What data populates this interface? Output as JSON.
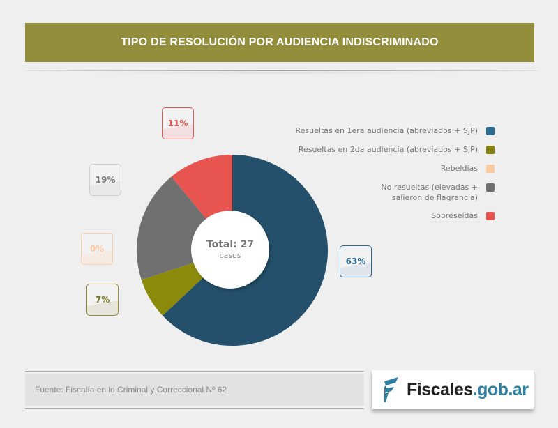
{
  "header": {
    "title": "TIPO DE RESOLUCIÓN POR AUDIENCIA INDISCRIMINADO"
  },
  "chart_data": {
    "type": "pie",
    "title": "TIPO DE RESOLUCIÓN POR AUDIENCIA INDISCRIMINADO",
    "center_label": {
      "total": "Total: 27",
      "unit": "casos"
    },
    "series": [
      {
        "name": "Resueltas en 1era audiencia (abreviados + SJP)",
        "value": 63,
        "label": "63%",
        "color": "#24506b",
        "swatch": "#2c6b91"
      },
      {
        "name": "Resueltas en 2da audiencia (abreviados + SJP)",
        "value": 7,
        "label": "7%",
        "color": "#8c8a0b",
        "swatch": "#848210"
      },
      {
        "name": "Rebeldías",
        "value": 0,
        "label": "0%",
        "color": "#fbc9a0",
        "swatch": "#fbc9a0"
      },
      {
        "name": "No resueltas (elevadas + salieron de flagrancia)",
        "name_lines": [
          "No resueltas (elevadas +",
          "salieron de flagrancia)"
        ],
        "value": 19,
        "label": "19%",
        "color": "#707070",
        "swatch": "#707070"
      },
      {
        "name": "Sobreseídas",
        "value": 11,
        "label": "11%",
        "color": "#e85551",
        "swatch": "#e85551"
      }
    ],
    "legend_position": "right"
  },
  "footer": {
    "source": "Fuente: Fiscalía en lo Criminal y Correccional Nº 62",
    "logo": {
      "text_main": "Fiscales",
      "text_domain": ".gob.ar",
      "mark_color": "#2f7fa0"
    }
  }
}
